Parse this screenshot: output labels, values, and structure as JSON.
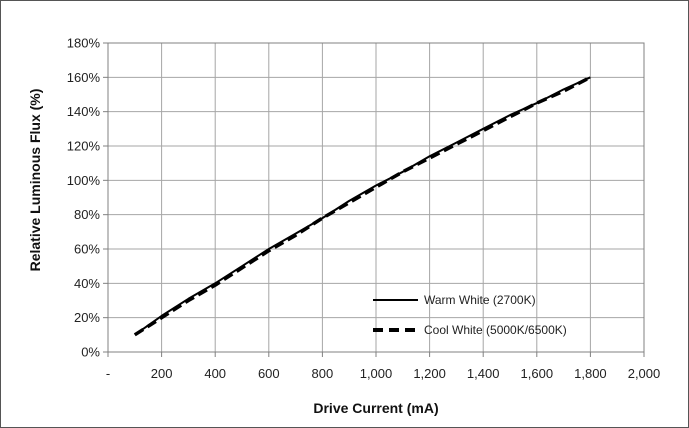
{
  "chart_data": {
    "type": "line",
    "xlabel": "Drive Current (mA)",
    "ylabel": "Relative Luminous Flux (%)",
    "xlim": [
      0,
      2000
    ],
    "ylim": [
      0,
      180
    ],
    "x_ticks": [
      {
        "value": 0,
        "label": "-"
      },
      {
        "value": 200,
        "label": "200"
      },
      {
        "value": 400,
        "label": "400"
      },
      {
        "value": 600,
        "label": "600"
      },
      {
        "value": 800,
        "label": "800"
      },
      {
        "value": 1000,
        "label": "1,000"
      },
      {
        "value": 1200,
        "label": "1,200"
      },
      {
        "value": 1400,
        "label": "1,400"
      },
      {
        "value": 1600,
        "label": "1,600"
      },
      {
        "value": 1800,
        "label": "1,800"
      },
      {
        "value": 2000,
        "label": "2,000"
      }
    ],
    "y_ticks": [
      {
        "value": 0,
        "label": "0%"
      },
      {
        "value": 20,
        "label": "20%"
      },
      {
        "value": 40,
        "label": "40%"
      },
      {
        "value": 60,
        "label": "60%"
      },
      {
        "value": 80,
        "label": "80%"
      },
      {
        "value": 100,
        "label": "100%"
      },
      {
        "value": 120,
        "label": "120%"
      },
      {
        "value": 140,
        "label": "140%"
      },
      {
        "value": 160,
        "label": "160%"
      },
      {
        "value": 180,
        "label": "180%"
      }
    ],
    "grid": true,
    "legend_position": "bottom-right",
    "series": [
      {
        "name": "Warm White (2700K)",
        "style": "solid",
        "color": "#000000",
        "x": [
          100,
          200,
          300,
          400,
          500,
          600,
          700,
          800,
          900,
          1000,
          1100,
          1200,
          1300,
          1400,
          1500,
          1600,
          1700,
          1800
        ],
        "y": [
          10,
          21,
          31,
          40,
          50,
          60,
          69,
          78,
          88,
          97,
          105,
          114,
          122,
          130,
          138,
          145,
          153,
          160
        ]
      },
      {
        "name": "Cool White (5000K/6500K)",
        "style": "dashed",
        "color": "#000000",
        "x": [
          100,
          200,
          300,
          400,
          500,
          600,
          700,
          800,
          900,
          1000,
          1100,
          1200,
          1300,
          1400,
          1500,
          1600,
          1700,
          1800
        ],
        "y": [
          10,
          20,
          30,
          39,
          49,
          59,
          68,
          78,
          87,
          96,
          105,
          113,
          121,
          129,
          137,
          145,
          152,
          160
        ]
      }
    ]
  }
}
